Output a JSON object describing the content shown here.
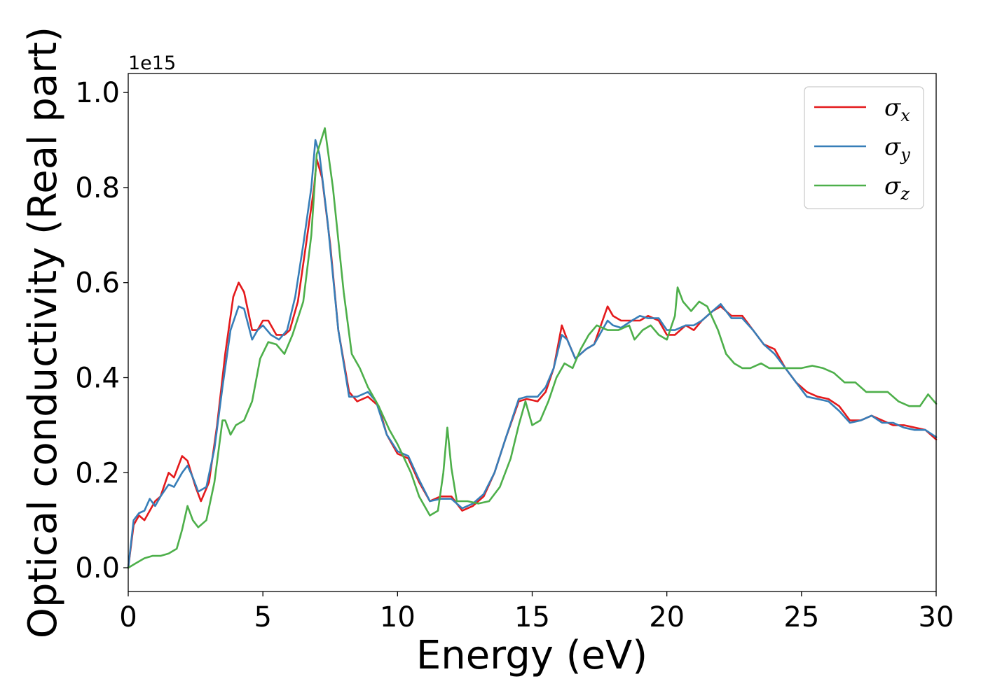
{
  "chart_data": {
    "type": "line",
    "xlabel": "Energy (eV)",
    "ylabel": "Optical conductivity (Real part)",
    "y_offset_label": "1e15",
    "xlim": [
      0,
      30
    ],
    "ylim": [
      -0.05,
      1.04
    ],
    "xticks": [
      0,
      5,
      10,
      15,
      20,
      25,
      30
    ],
    "xtick_labels": [
      "0",
      "5",
      "10",
      "15",
      "20",
      "25",
      "30"
    ],
    "yticks": [
      0.0,
      0.2,
      0.4,
      0.6,
      0.8,
      1.0
    ],
    "ytick_labels": [
      "0.0",
      "0.2",
      "0.4",
      "0.6",
      "0.8",
      "1.0"
    ],
    "grid": false,
    "legend_position": "top-right",
    "series": [
      {
        "name": "σx",
        "symbol": "σ",
        "subscript": "x",
        "color": "#e41a1c",
        "points": [
          [
            0,
            0
          ],
          [
            0.2,
            0.09
          ],
          [
            0.4,
            0.11
          ],
          [
            0.6,
            0.1
          ],
          [
            0.8,
            0.12
          ],
          [
            1.0,
            0.14
          ],
          [
            1.2,
            0.15
          ],
          [
            1.5,
            0.2
          ],
          [
            1.7,
            0.19
          ],
          [
            2.0,
            0.235
          ],
          [
            2.2,
            0.225
          ],
          [
            2.5,
            0.17
          ],
          [
            2.7,
            0.14
          ],
          [
            3.0,
            0.18
          ],
          [
            3.3,
            0.3
          ],
          [
            3.6,
            0.45
          ],
          [
            3.9,
            0.57
          ],
          [
            4.1,
            0.6
          ],
          [
            4.3,
            0.58
          ],
          [
            4.6,
            0.5
          ],
          [
            4.8,
            0.5
          ],
          [
            5.0,
            0.52
          ],
          [
            5.2,
            0.52
          ],
          [
            5.5,
            0.49
          ],
          [
            5.8,
            0.49
          ],
          [
            6.0,
            0.5
          ],
          [
            6.3,
            0.56
          ],
          [
            6.6,
            0.68
          ],
          [
            6.9,
            0.8
          ],
          [
            7.0,
            0.86
          ],
          [
            7.2,
            0.82
          ],
          [
            7.5,
            0.68
          ],
          [
            7.8,
            0.5
          ],
          [
            8.2,
            0.37
          ],
          [
            8.5,
            0.35
          ],
          [
            8.9,
            0.36
          ],
          [
            9.3,
            0.34
          ],
          [
            9.6,
            0.28
          ],
          [
            10.0,
            0.24
          ],
          [
            10.4,
            0.23
          ],
          [
            10.8,
            0.18
          ],
          [
            11.2,
            0.14
          ],
          [
            11.6,
            0.15
          ],
          [
            12.0,
            0.15
          ],
          [
            12.4,
            0.12
          ],
          [
            12.8,
            0.13
          ],
          [
            13.2,
            0.15
          ],
          [
            13.6,
            0.2
          ],
          [
            14.0,
            0.27
          ],
          [
            14.5,
            0.35
          ],
          [
            14.8,
            0.355
          ],
          [
            15.2,
            0.35
          ],
          [
            15.5,
            0.37
          ],
          [
            15.8,
            0.42
          ],
          [
            16.1,
            0.51
          ],
          [
            16.3,
            0.48
          ],
          [
            16.6,
            0.44
          ],
          [
            17.0,
            0.46
          ],
          [
            17.3,
            0.47
          ],
          [
            17.8,
            0.55
          ],
          [
            18.0,
            0.53
          ],
          [
            18.3,
            0.52
          ],
          [
            18.7,
            0.52
          ],
          [
            19.0,
            0.52
          ],
          [
            19.3,
            0.53
          ],
          [
            19.7,
            0.52
          ],
          [
            20.0,
            0.49
          ],
          [
            20.3,
            0.49
          ],
          [
            20.7,
            0.51
          ],
          [
            21.0,
            0.5
          ],
          [
            21.3,
            0.52
          ],
          [
            21.7,
            0.54
          ],
          [
            22.0,
            0.55
          ],
          [
            22.4,
            0.53
          ],
          [
            22.8,
            0.53
          ],
          [
            23.2,
            0.5
          ],
          [
            23.6,
            0.47
          ],
          [
            24.0,
            0.46
          ],
          [
            24.4,
            0.42
          ],
          [
            24.8,
            0.39
          ],
          [
            25.2,
            0.37
          ],
          [
            25.6,
            0.36
          ],
          [
            26.0,
            0.355
          ],
          [
            26.4,
            0.34
          ],
          [
            26.8,
            0.31
          ],
          [
            27.2,
            0.31
          ],
          [
            27.6,
            0.32
          ],
          [
            28.0,
            0.31
          ],
          [
            28.4,
            0.3
          ],
          [
            28.8,
            0.3
          ],
          [
            29.2,
            0.295
          ],
          [
            29.6,
            0.29
          ],
          [
            30.0,
            0.27
          ]
        ]
      },
      {
        "name": "σy",
        "symbol": "σ",
        "subscript": "y",
        "color": "#377eb8",
        "points": [
          [
            0,
            0
          ],
          [
            0.2,
            0.1
          ],
          [
            0.4,
            0.115
          ],
          [
            0.6,
            0.12
          ],
          [
            0.8,
            0.145
          ],
          [
            1.0,
            0.13
          ],
          [
            1.2,
            0.15
          ],
          [
            1.5,
            0.175
          ],
          [
            1.7,
            0.17
          ],
          [
            2.0,
            0.2
          ],
          [
            2.2,
            0.215
          ],
          [
            2.4,
            0.19
          ],
          [
            2.6,
            0.16
          ],
          [
            2.9,
            0.17
          ],
          [
            3.2,
            0.25
          ],
          [
            3.5,
            0.38
          ],
          [
            3.8,
            0.5
          ],
          [
            4.1,
            0.55
          ],
          [
            4.3,
            0.545
          ],
          [
            4.6,
            0.48
          ],
          [
            4.8,
            0.5
          ],
          [
            5.0,
            0.51
          ],
          [
            5.3,
            0.49
          ],
          [
            5.6,
            0.48
          ],
          [
            5.9,
            0.5
          ],
          [
            6.2,
            0.57
          ],
          [
            6.5,
            0.68
          ],
          [
            6.8,
            0.8
          ],
          [
            6.95,
            0.9
          ],
          [
            7.1,
            0.87
          ],
          [
            7.4,
            0.73
          ],
          [
            7.8,
            0.5
          ],
          [
            8.2,
            0.36
          ],
          [
            8.5,
            0.36
          ],
          [
            8.9,
            0.37
          ],
          [
            9.2,
            0.35
          ],
          [
            9.6,
            0.28
          ],
          [
            10.0,
            0.245
          ],
          [
            10.4,
            0.235
          ],
          [
            10.8,
            0.185
          ],
          [
            11.2,
            0.14
          ],
          [
            11.6,
            0.145
          ],
          [
            12.0,
            0.145
          ],
          [
            12.4,
            0.125
          ],
          [
            12.8,
            0.135
          ],
          [
            13.2,
            0.155
          ],
          [
            13.6,
            0.2
          ],
          [
            14.0,
            0.27
          ],
          [
            14.5,
            0.355
          ],
          [
            14.8,
            0.36
          ],
          [
            15.2,
            0.36
          ],
          [
            15.5,
            0.38
          ],
          [
            15.8,
            0.42
          ],
          [
            16.1,
            0.49
          ],
          [
            16.3,
            0.48
          ],
          [
            16.6,
            0.44
          ],
          [
            17.0,
            0.46
          ],
          [
            17.3,
            0.47
          ],
          [
            17.8,
            0.52
          ],
          [
            18.0,
            0.51
          ],
          [
            18.3,
            0.505
          ],
          [
            18.7,
            0.52
          ],
          [
            19.0,
            0.53
          ],
          [
            19.3,
            0.525
          ],
          [
            19.7,
            0.525
          ],
          [
            20.0,
            0.5
          ],
          [
            20.3,
            0.5
          ],
          [
            20.7,
            0.51
          ],
          [
            21.0,
            0.51
          ],
          [
            21.3,
            0.52
          ],
          [
            21.7,
            0.54
          ],
          [
            22.0,
            0.555
          ],
          [
            22.4,
            0.525
          ],
          [
            22.8,
            0.525
          ],
          [
            23.2,
            0.5
          ],
          [
            23.6,
            0.47
          ],
          [
            24.0,
            0.45
          ],
          [
            24.4,
            0.42
          ],
          [
            24.8,
            0.39
          ],
          [
            25.2,
            0.36
          ],
          [
            25.6,
            0.355
          ],
          [
            26.0,
            0.35
          ],
          [
            26.4,
            0.33
          ],
          [
            26.8,
            0.305
          ],
          [
            27.2,
            0.31
          ],
          [
            27.6,
            0.32
          ],
          [
            28.0,
            0.305
          ],
          [
            28.4,
            0.305
          ],
          [
            28.8,
            0.295
          ],
          [
            29.2,
            0.29
          ],
          [
            29.6,
            0.29
          ],
          [
            30.0,
            0.275
          ]
        ]
      },
      {
        "name": "σz",
        "symbol": "σ",
        "subscript": "z",
        "color": "#4daf4a",
        "points": [
          [
            0,
            0
          ],
          [
            0.3,
            0.01
          ],
          [
            0.6,
            0.02
          ],
          [
            0.9,
            0.025
          ],
          [
            1.2,
            0.025
          ],
          [
            1.5,
            0.03
          ],
          [
            1.8,
            0.04
          ],
          [
            2.0,
            0.08
          ],
          [
            2.2,
            0.13
          ],
          [
            2.4,
            0.1
          ],
          [
            2.6,
            0.085
          ],
          [
            2.9,
            0.1
          ],
          [
            3.2,
            0.18
          ],
          [
            3.5,
            0.31
          ],
          [
            3.6,
            0.31
          ],
          [
            3.8,
            0.28
          ],
          [
            4.0,
            0.3
          ],
          [
            4.3,
            0.31
          ],
          [
            4.6,
            0.35
          ],
          [
            4.9,
            0.44
          ],
          [
            5.2,
            0.475
          ],
          [
            5.5,
            0.47
          ],
          [
            5.8,
            0.45
          ],
          [
            6.1,
            0.49
          ],
          [
            6.5,
            0.56
          ],
          [
            6.8,
            0.7
          ],
          [
            7.0,
            0.87
          ],
          [
            7.3,
            0.925
          ],
          [
            7.6,
            0.8
          ],
          [
            8.0,
            0.58
          ],
          [
            8.3,
            0.45
          ],
          [
            8.6,
            0.42
          ],
          [
            8.9,
            0.38
          ],
          [
            9.3,
            0.34
          ],
          [
            9.7,
            0.29
          ],
          [
            10.0,
            0.26
          ],
          [
            10.5,
            0.2
          ],
          [
            10.8,
            0.15
          ],
          [
            11.2,
            0.11
          ],
          [
            11.5,
            0.12
          ],
          [
            11.7,
            0.2
          ],
          [
            11.85,
            0.295
          ],
          [
            12.0,
            0.21
          ],
          [
            12.2,
            0.14
          ],
          [
            12.6,
            0.14
          ],
          [
            13.0,
            0.135
          ],
          [
            13.4,
            0.14
          ],
          [
            13.8,
            0.17
          ],
          [
            14.2,
            0.23
          ],
          [
            14.5,
            0.3
          ],
          [
            14.75,
            0.35
          ],
          [
            15.0,
            0.3
          ],
          [
            15.3,
            0.31
          ],
          [
            15.6,
            0.35
          ],
          [
            15.9,
            0.4
          ],
          [
            16.2,
            0.43
          ],
          [
            16.5,
            0.42
          ],
          [
            16.8,
            0.46
          ],
          [
            17.1,
            0.49
          ],
          [
            17.4,
            0.51
          ],
          [
            17.8,
            0.5
          ],
          [
            18.2,
            0.5
          ],
          [
            18.6,
            0.51
          ],
          [
            18.8,
            0.48
          ],
          [
            19.1,
            0.5
          ],
          [
            19.4,
            0.51
          ],
          [
            19.7,
            0.49
          ],
          [
            20.0,
            0.48
          ],
          [
            20.3,
            0.53
          ],
          [
            20.4,
            0.59
          ],
          [
            20.6,
            0.56
          ],
          [
            20.9,
            0.54
          ],
          [
            21.2,
            0.56
          ],
          [
            21.5,
            0.55
          ],
          [
            21.9,
            0.5
          ],
          [
            22.2,
            0.45
          ],
          [
            22.5,
            0.43
          ],
          [
            22.8,
            0.42
          ],
          [
            23.1,
            0.42
          ],
          [
            23.5,
            0.43
          ],
          [
            23.8,
            0.42
          ],
          [
            24.2,
            0.42
          ],
          [
            24.6,
            0.42
          ],
          [
            25.0,
            0.42
          ],
          [
            25.4,
            0.425
          ],
          [
            25.8,
            0.42
          ],
          [
            26.2,
            0.41
          ],
          [
            26.6,
            0.39
          ],
          [
            27.0,
            0.39
          ],
          [
            27.4,
            0.37
          ],
          [
            27.8,
            0.37
          ],
          [
            28.2,
            0.37
          ],
          [
            28.6,
            0.35
          ],
          [
            29.0,
            0.34
          ],
          [
            29.4,
            0.34
          ],
          [
            29.7,
            0.365
          ],
          [
            30.0,
            0.345
          ]
        ]
      }
    ]
  }
}
